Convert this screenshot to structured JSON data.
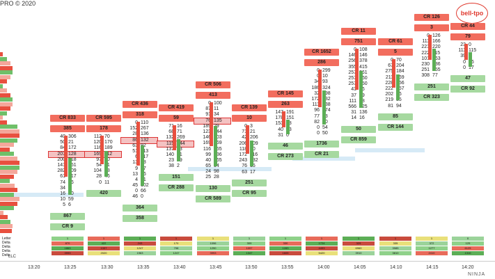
{
  "header": {
    "watermark": "PRO © 2020",
    "logo": "bell-tpo"
  },
  "footer": {
    "copyright": "LLC",
    "brand": "NINJA"
  },
  "time_axis": [
    "13:20",
    "13:25",
    "13:30",
    "13:35",
    "13:40",
    "13:45",
    "13:50",
    "13:55",
    "14:00",
    "14:05",
    "14:10",
    "14:15",
    "14:20"
  ],
  "left_labels": [
    "Letter",
    "Delta",
    "Delta",
    "Delta",
    "Delta"
  ],
  "bars": [
    {
      "id": "b1",
      "cr_top": "CR 833",
      "val_top": "385",
      "rows": [
        [
          "40",
          "306"
        ],
        [
          "50",
          "21"
        ],
        [
          "84",
          "172"
        ],
        [
          "207",
          "128"
        ],
        [
          "200",
          "218"
        ],
        [
          "141",
          "151"
        ],
        [
          "282",
          "209"
        ],
        [
          "61",
          "217"
        ],
        [
          "74",
          "66"
        ],
        [
          "34",
          "9"
        ],
        [
          "16",
          "20"
        ],
        [
          "10",
          "59"
        ],
        [
          "5",
          "6"
        ]
      ],
      "bottom": "867",
      "cr_bottom": "CR 9"
    },
    {
      "id": "b2",
      "cr_top": "CR 595",
      "val_top": "178",
      "rows": [
        [
          "112",
          "70"
        ],
        [
          "120",
          "170"
        ],
        [
          "116",
          "189"
        ],
        [
          "169",
          "112"
        ],
        [
          "97",
          "90"
        ],
        [
          "54",
          "51"
        ],
        [
          "104",
          "88"
        ],
        [
          "28",
          "46"
        ],
        [
          "0",
          "11"
        ]
      ],
      "bottom": "420",
      "cr_bottom": ""
    },
    {
      "id": "b3",
      "cr_top": "CR 436",
      "val_top": "318",
      "rows": [
        [
          "0",
          "110"
        ],
        [
          "152",
          "267"
        ],
        [
          "28",
          "136"
        ],
        [
          "86",
          "132"
        ],
        [
          "63",
          "92"
        ],
        [
          "51",
          "113"
        ],
        [
          "6",
          "117"
        ],
        [
          "13",
          "48"
        ],
        [
          "9",
          "57"
        ],
        [
          "13",
          "86"
        ],
        [
          "4",
          "61"
        ],
        [
          "45",
          "102"
        ],
        [
          "0",
          "66"
        ],
        [
          "46",
          "0"
        ]
      ],
      "bottom": "364",
      "cr_bottom": "358"
    },
    {
      "id": "b4",
      "cr_top": "CR 419",
      "val_top": "59",
      "rows": [
        [
          "71",
          "16"
        ],
        [
          "68",
          "71"
        ],
        [
          "132",
          "269"
        ],
        [
          "115",
          "244"
        ],
        [
          "137",
          "83"
        ],
        [
          "140",
          "81"
        ],
        [
          "23",
          "49"
        ],
        [
          "38",
          "2"
        ]
      ],
      "bottom": "151",
      "cr_bottom": "CR 288"
    },
    {
      "id": "b5",
      "cr_top": "CR 506",
      "val_top": "413",
      "rows": [
        [
          "0",
          "100"
        ],
        [
          "87",
          "11"
        ],
        [
          "91",
          "34"
        ],
        [
          "76",
          "135"
        ],
        [
          "189",
          "29"
        ],
        [
          "123",
          "244"
        ],
        [
          "146",
          "203"
        ],
        [
          "169",
          "169"
        ],
        [
          "116",
          "155"
        ],
        [
          "99",
          "136"
        ],
        [
          "40",
          "165"
        ],
        [
          "65",
          "54"
        ],
        [
          "24",
          "98"
        ],
        [
          "25",
          "28"
        ]
      ],
      "bottom": "130",
      "cr_bottom": "CR 589"
    },
    {
      "id": "b6",
      "cr_top": "CR 139",
      "val_top": "10",
      "rows": [
        [
          "0",
          "3"
        ],
        [
          "71",
          "21"
        ],
        [
          "42",
          "206"
        ],
        [
          "206",
          "109"
        ],
        [
          "118",
          "60"
        ],
        [
          "172",
          "116"
        ],
        [
          "243",
          "132"
        ],
        [
          "76",
          "15"
        ],
        [
          "63",
          "17"
        ]
      ],
      "bottom": "251",
      "cr_bottom": "CR 95"
    },
    {
      "id": "b7",
      "cr_top": "CR 145",
      "val_top": "263",
      "rows": [
        [
          "147",
          "191"
        ],
        [
          "178",
          "151"
        ],
        [
          "153",
          "88"
        ],
        [
          "40",
          "13"
        ],
        [
          "31",
          "0"
        ]
      ],
      "bottom": "46",
      "cr_bottom": "CR 273"
    },
    {
      "id": "b8",
      "cr_top": "CR 1652",
      "val_top": "286",
      "rows": [
        [
          "0",
          "299"
        ],
        [
          "0",
          "10"
        ],
        [
          "34",
          "93"
        ],
        [
          "186",
          "324"
        ],
        [
          "32",
          "698"
        ],
        [
          "172",
          "132"
        ],
        [
          "111",
          "138"
        ],
        [
          "96",
          "174"
        ],
        [
          "77",
          "73"
        ],
        [
          "82",
          "10"
        ],
        [
          "0",
          "54"
        ],
        [
          "0",
          "50"
        ]
      ],
      "bottom": "1736",
      "cr_bottom": "CR 21"
    },
    {
      "id": "b9",
      "cr_top": "CR 11",
      "val_top": "751",
      "rows": [
        [
          "0",
          "108"
        ],
        [
          "146",
          "146"
        ],
        [
          "256",
          "378"
        ],
        [
          "355",
          "415"
        ],
        [
          "257",
          "261"
        ],
        [
          "257",
          "260"
        ],
        [
          "257",
          "250"
        ],
        [
          "43",
          "96"
        ],
        [
          "37",
          "49"
        ],
        [
          "111",
          "48"
        ],
        [
          "566",
          "125"
        ],
        [
          "31",
          "136"
        ],
        [
          "14",
          "16"
        ]
      ],
      "bottom": "50",
      "cr_bottom": "CR 859"
    },
    {
      "id": "b10",
      "cr_top": "CR 61",
      "val_top": "5",
      "rows": [
        [
          "0",
          "70"
        ],
        [
          "67",
          "204"
        ],
        [
          "275",
          "184"
        ],
        [
          "211",
          "169"
        ],
        [
          "228",
          "156"
        ],
        [
          "222",
          "257"
        ],
        [
          "202",
          "76"
        ],
        [
          "219",
          "85"
        ],
        [
          "81",
          "94"
        ]
      ],
      "bottom": "85",
      "cr_bottom": "CR 144"
    },
    {
      "id": "b11",
      "cr_top": "CR 126",
      "val_top": "3",
      "rows": [
        [
          "0",
          "126"
        ],
        [
          "111",
          "166"
        ],
        [
          "221",
          "220"
        ],
        [
          "222",
          "115"
        ],
        [
          "101",
          "363"
        ],
        [
          "230",
          "236"
        ],
        [
          "251",
          "255"
        ],
        [
          "308",
          "77"
        ]
      ],
      "bottom": "251",
      "cr_bottom": "CR 323"
    },
    {
      "id": "b12",
      "cr_top": "CR 44",
      "val_top": "79",
      "rows": [
        [
          "23",
          "0"
        ],
        [
          "111",
          "115"
        ],
        [
          "39",
          "6"
        ],
        [
          "0",
          "26"
        ],
        [
          "0",
          "17"
        ]
      ],
      "bottom": "47",
      "cr_bottom": "CR 92"
    }
  ],
  "summary": [
    {
      "r1": "1",
      "r2": "870",
      "r3": "1863",
      "r4": "3993"
    },
    {
      "r1": "1",
      "r2": "422",
      "r3": "1337",
      "r4": "2020"
    },
    {
      "r1": "1",
      "r2": "243",
      "r3": "1247",
      "r4": "1963"
    },
    {
      "r1": "1",
      "r2": "170",
      "r3": "798",
      "r4": "1247"
    },
    {
      "r1": "1",
      "r2": "1096",
      "r3": "1290",
      "r4": "3993"
    },
    {
      "r1": "1",
      "r2": "309",
      "r3": "1097",
      "r4": "1347"
    },
    {
      "r1": "1",
      "r2": "330",
      "r3": "1283",
      "r4": "1605"
    },
    {
      "r1": "1",
      "r2": "1724",
      "r3": "4493",
      "r4": "5420"
    },
    {
      "r1": "1",
      "r2": "329",
      "r3": "6960",
      "r4": "3910"
    },
    {
      "r1": "1",
      "r2": "335",
      "r3": "3985",
      "r4": "3810"
    },
    {
      "r1": "1",
      "r2": "372",
      "r3": "1277",
      "r4": "2410"
    },
    {
      "r1": "0",
      "r2": "129",
      "r3": "6125",
      "r4": "1310"
    }
  ]
}
